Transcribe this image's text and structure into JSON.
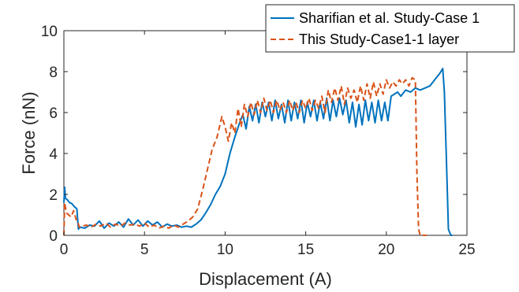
{
  "chart_data": {
    "type": "line",
    "title": "",
    "xlabel": "Displacement (A)",
    "ylabel": "Force (nN)",
    "xlim": [
      0,
      25
    ],
    "ylim": [
      0,
      10
    ],
    "xticks": [
      0,
      5,
      10,
      15,
      20,
      25
    ],
    "yticks": [
      0,
      2,
      4,
      6,
      8,
      10
    ],
    "xtick_labels": [
      "0",
      "5",
      "10",
      "15",
      "20",
      "25"
    ],
    "ytick_labels": [
      "0",
      "2",
      "4",
      "6",
      "8",
      "10"
    ],
    "grid": false,
    "legend_position": "top-right",
    "series": [
      {
        "name": "Sharifian et al. Study-Case 1",
        "color": "#0072BD",
        "line_style": "solid",
        "x": [
          0,
          0.05,
          0.1,
          0.2,
          0.35,
          0.5,
          0.65,
          0.8,
          0.9,
          1.0,
          1.3,
          1.6,
          1.9,
          2.2,
          2.5,
          2.8,
          3.1,
          3.4,
          3.7,
          4.0,
          4.3,
          4.6,
          4.9,
          5.2,
          5.5,
          5.8,
          6.1,
          6.4,
          6.7,
          7.0,
          7.3,
          7.6,
          7.9,
          8.2,
          8.5,
          8.8,
          9.1,
          9.4,
          9.7,
          10.0,
          10.3,
          10.6,
          10.9,
          11.1,
          11.3,
          11.5,
          11.7,
          11.9,
          12.1,
          12.3,
          12.5,
          12.7,
          12.9,
          13.1,
          13.3,
          13.5,
          13.7,
          13.9,
          14.1,
          14.3,
          14.5,
          14.7,
          14.9,
          15.1,
          15.3,
          15.5,
          15.7,
          15.9,
          16.1,
          16.3,
          16.5,
          16.7,
          16.9,
          17.1,
          17.3,
          17.5,
          17.7,
          17.9,
          18.1,
          18.3,
          18.5,
          18.7,
          18.9,
          19.1,
          19.3,
          19.5,
          19.7,
          19.9,
          20.1,
          20.3,
          20.5,
          20.7,
          20.9,
          21.2,
          21.5,
          21.8,
          22.1,
          22.4,
          22.7,
          23.0,
          23.3,
          23.5,
          23.6,
          23.75,
          23.85,
          24.0,
          24.1
        ],
        "y": [
          1.6,
          2.35,
          1.8,
          1.75,
          1.6,
          1.55,
          1.4,
          1.3,
          0.3,
          0.4,
          0.35,
          0.5,
          0.45,
          0.7,
          0.35,
          0.6,
          0.45,
          0.65,
          0.4,
          0.8,
          0.5,
          0.75,
          0.45,
          0.7,
          0.5,
          0.65,
          0.4,
          0.55,
          0.45,
          0.5,
          0.4,
          0.45,
          0.4,
          0.55,
          0.75,
          1.1,
          1.5,
          2.0,
          2.4,
          3.0,
          4.0,
          4.8,
          5.5,
          5.9,
          5.2,
          6.3,
          5.6,
          6.4,
          5.5,
          6.5,
          5.8,
          6.5,
          5.6,
          6.6,
          5.7,
          6.4,
          5.5,
          6.6,
          5.6,
          6.5,
          5.7,
          6.6,
          5.5,
          6.5,
          5.8,
          6.6,
          5.6,
          6.5,
          5.7,
          6.7,
          5.6,
          6.6,
          5.8,
          6.7,
          5.9,
          6.6,
          5.5,
          6.5,
          5.3,
          6.4,
          5.4,
          6.6,
          5.6,
          6.5,
          5.5,
          6.6,
          5.6,
          6.5,
          5.6,
          6.8,
          6.9,
          7.0,
          6.8,
          7.1,
          7.0,
          7.2,
          7.1,
          7.2,
          7.3,
          7.6,
          7.9,
          8.15,
          7.0,
          3.0,
          0.3,
          0.0,
          0.0
        ]
      },
      {
        "name": "This Study-Case1-1 layer",
        "color": "#D95319",
        "line_style": "dashed",
        "x": [
          0,
          0.05,
          0.15,
          0.3,
          0.45,
          0.6,
          0.75,
          0.85,
          0.95,
          1.1,
          1.4,
          1.7,
          2.0,
          2.3,
          2.6,
          2.9,
          3.2,
          3.5,
          3.8,
          4.1,
          4.4,
          4.7,
          5.0,
          5.3,
          5.6,
          5.9,
          6.2,
          6.5,
          6.8,
          7.1,
          7.4,
          7.7,
          8.0,
          8.3,
          8.6,
          8.9,
          9.2,
          9.5,
          9.8,
          10.0,
          10.2,
          10.4,
          10.6,
          10.8,
          11.0,
          11.2,
          11.4,
          11.6,
          11.8,
          12.0,
          12.2,
          12.4,
          12.6,
          12.8,
          13.0,
          13.2,
          13.4,
          13.6,
          13.8,
          14.0,
          14.2,
          14.4,
          14.6,
          14.8,
          15.0,
          15.2,
          15.4,
          15.6,
          15.8,
          16.0,
          16.2,
          16.4,
          16.6,
          16.8,
          17.0,
          17.2,
          17.4,
          17.6,
          17.8,
          18.0,
          18.2,
          18.4,
          18.6,
          18.8,
          19.0,
          19.2,
          19.4,
          19.6,
          19.8,
          20.0,
          20.2,
          20.4,
          20.6,
          20.8,
          21.0,
          21.2,
          21.4,
          21.6,
          21.8,
          21.9,
          22.0,
          22.1,
          22.2,
          22.5
        ],
        "y": [
          0.0,
          1.6,
          1.1,
          1.0,
          0.9,
          1.2,
          0.8,
          0.7,
          0.4,
          0.45,
          0.5,
          0.4,
          0.55,
          0.45,
          0.6,
          0.4,
          0.55,
          0.45,
          0.6,
          0.5,
          0.55,
          0.45,
          0.6,
          0.4,
          0.5,
          0.35,
          0.45,
          0.35,
          0.5,
          0.4,
          0.55,
          0.7,
          0.9,
          1.3,
          2.2,
          3.2,
          4.2,
          4.8,
          5.8,
          5.3,
          4.6,
          5.5,
          5.0,
          6.2,
          5.3,
          6.4,
          5.8,
          6.5,
          5.9,
          6.6,
          6.0,
          6.7,
          6.1,
          6.6,
          6.0,
          6.6,
          6.1,
          6.5,
          6.0,
          6.6,
          6.1,
          6.5,
          6.0,
          6.6,
          6.2,
          6.7,
          6.1,
          6.6,
          6.2,
          6.8,
          6.0,
          7.1,
          6.5,
          7.2,
          6.6,
          7.3,
          6.4,
          7.2,
          6.7,
          7.1,
          6.5,
          7.3,
          6.6,
          7.4,
          6.7,
          7.5,
          6.8,
          7.4,
          6.9,
          7.6,
          7.2,
          7.5,
          7.3,
          7.6,
          7.4,
          7.6,
          7.3,
          7.7,
          7.6,
          3.0,
          0.3,
          0.0,
          0.0,
          0.0
        ]
      }
    ]
  }
}
